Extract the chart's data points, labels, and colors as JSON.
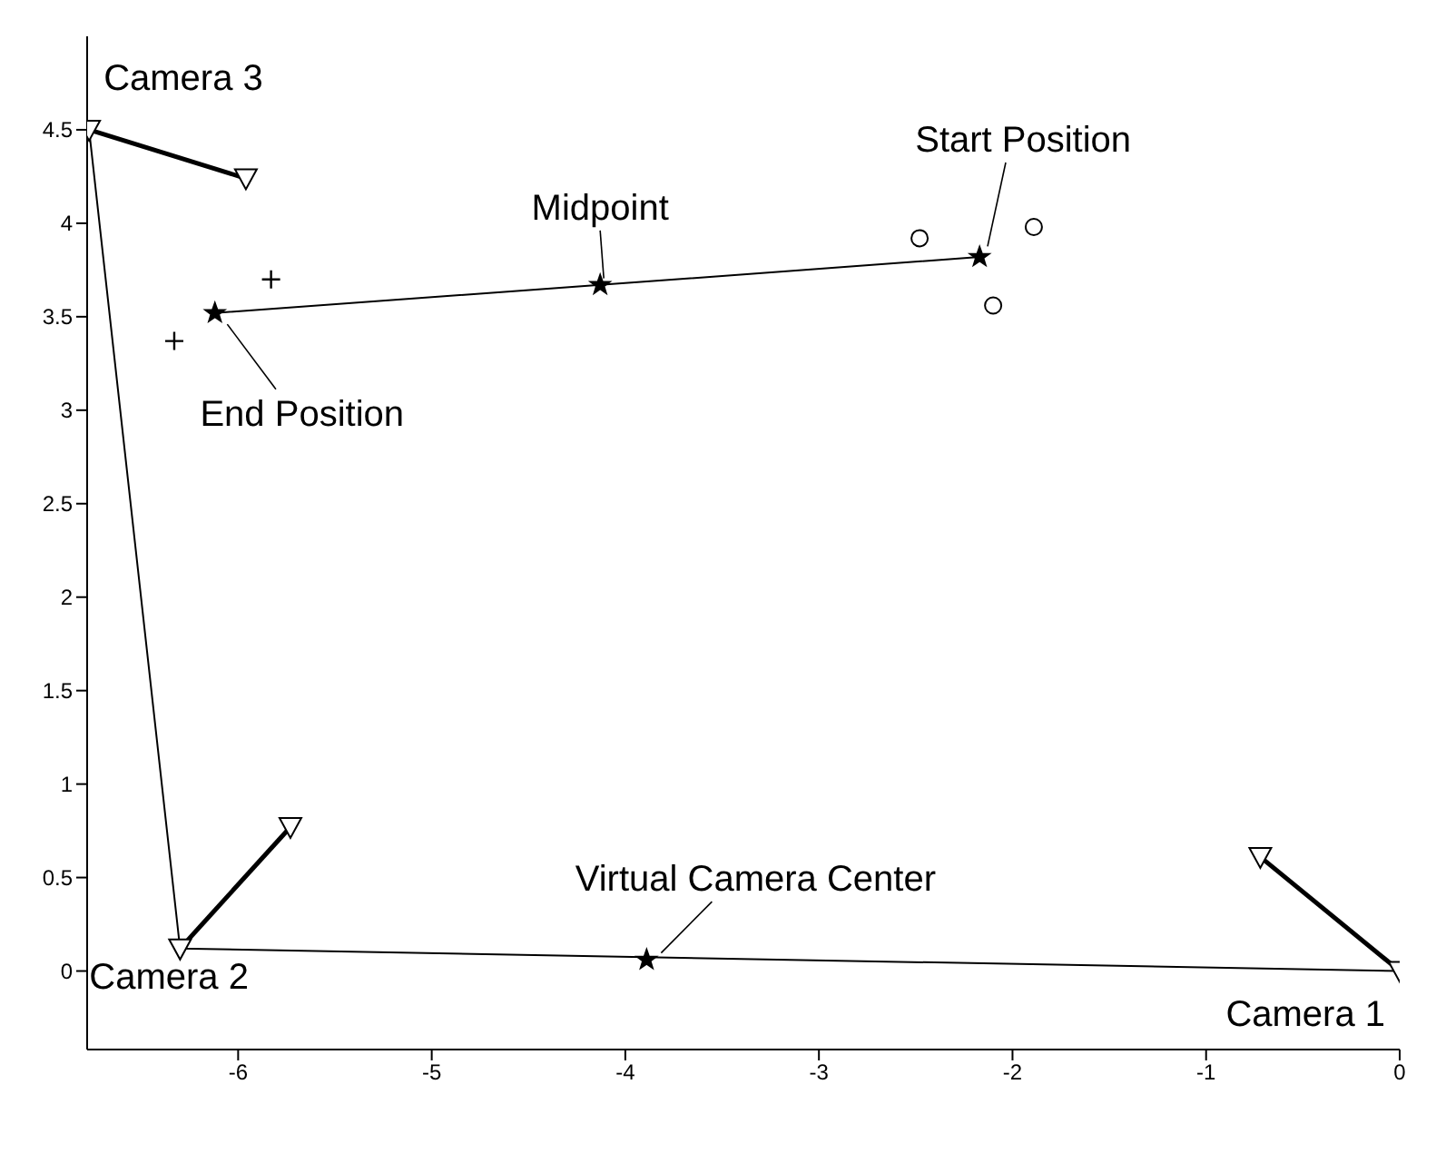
{
  "chart_data": {
    "type": "line",
    "xlim": [
      -6.78,
      0
    ],
    "ylim": [
      -0.42,
      5.0
    ],
    "xticks": [
      -6,
      -5,
      -4,
      -3,
      -2,
      -1,
      0
    ],
    "yticks": [
      0,
      0.5,
      1,
      1.5,
      2,
      2.5,
      3,
      3.5,
      4,
      4.5
    ],
    "grid": false,
    "legend": false,
    "series": [
      {
        "color": "#000000",
        "x": [
          0,
          -6.3,
          -6.77
        ],
        "values": [
          0,
          0.12,
          4.5
        ]
      },
      {
        "marker": "triangle",
        "color": "#000000",
        "x": [
          0,
          -0.72
        ],
        "values": [
          0,
          0.61
        ]
      },
      {
        "marker": "triangle",
        "color": "#000000",
        "x": [
          -6.3,
          -5.73
        ],
        "values": [
          0.12,
          0.77
        ]
      },
      {
        "marker": "triangle",
        "color": "#000000",
        "x": [
          -6.77,
          -5.96
        ],
        "values": [
          4.5,
          4.24
        ]
      },
      {
        "marker": "star",
        "color": "#000000",
        "x": [
          -6.12,
          -4.13,
          -2.17
        ],
        "values": [
          3.52,
          3.67,
          3.82
        ]
      },
      {
        "type": "scatter",
        "marker": "star",
        "color": "#000000",
        "x": [
          -3.89
        ],
        "values": [
          0.06
        ]
      },
      {
        "type": "scatter",
        "marker": "cross",
        "color": "#000000",
        "x": [
          -5.83,
          -6.33
        ],
        "values": [
          3.7,
          3.37
        ]
      },
      {
        "type": "scatter",
        "marker": "circle",
        "color": "#000000",
        "x": [
          -2.48,
          -1.89,
          -2.1
        ],
        "values": [
          3.92,
          3.98,
          3.56
        ]
      }
    ],
    "annotations": [
      {
        "text": "Camera 3",
        "x": -6.77,
        "y": 4.5
      },
      {
        "text": "Camera 2",
        "x": -6.3,
        "y": 0.12
      },
      {
        "text": "Camera 1",
        "x": 0,
        "y": 0
      },
      {
        "text": "Virtual Camera Center",
        "x": -3.89,
        "y": 0.06
      },
      {
        "text": "Start Position",
        "x": -2.17,
        "y": 3.82
      },
      {
        "text": "Midpoint",
        "x": -4.13,
        "y": 3.67
      },
      {
        "text": "End Position",
        "x": -6.12,
        "y": 3.52
      }
    ]
  }
}
